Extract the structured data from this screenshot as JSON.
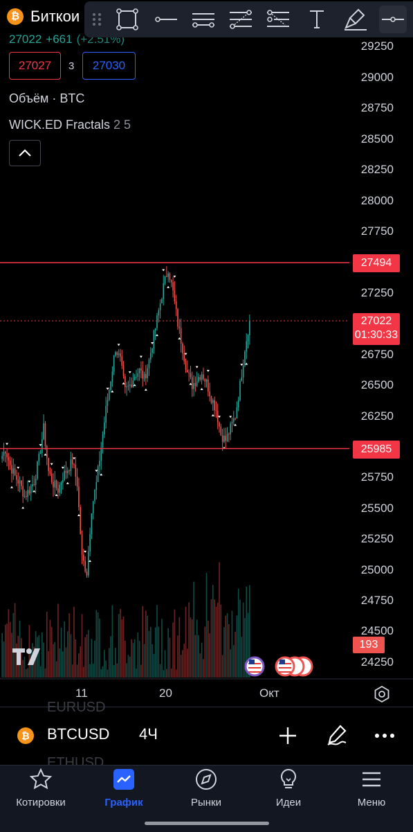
{
  "symbol": {
    "title": "Биткои",
    "price": "27022",
    "change": "+661",
    "change_pct": "(+2.51%)",
    "sell_price": "27027",
    "spread": "3",
    "buy_price": "27030"
  },
  "indicators": [
    {
      "name": "Объём · BTC",
      "params": ""
    },
    {
      "name": "WICK.ED Fractals",
      "params": "2 5"
    }
  ],
  "toolbar": {
    "tools": [
      "drag-handle",
      "rectangle",
      "horizontal-ray",
      "parallel-channel",
      "fib-retracement",
      "pitchfork",
      "text",
      "brush",
      "horizontal-line"
    ],
    "active_tool": "horizontal-line"
  },
  "price_axis": {
    "ticks": [
      "29250",
      "29000",
      "28750",
      "28500",
      "28250",
      "28000",
      "27750",
      "27250",
      "26750",
      "26500",
      "26250",
      "25750",
      "25500",
      "25250",
      "25000",
      "24750",
      "24500",
      "24250"
    ],
    "resistance_label": "27494",
    "current_price_label": "27022",
    "countdown": "01:30:33",
    "support_label": "25985",
    "volume_label": "193"
  },
  "time_axis": {
    "ticks": [
      "11",
      "20",
      "Окт"
    ]
  },
  "chart_data": {
    "type": "candlestick",
    "instrument": "BTCUSD",
    "timeframe": "4Ч",
    "ylim": [
      24200,
      29350
    ],
    "horizontal_lines": [
      27494,
      25985
    ],
    "current_price": 27022,
    "closes_approx": [
      25900,
      25980,
      25850,
      25760,
      25700,
      25600,
      25650,
      25720,
      25900,
      26150,
      25800,
      25700,
      25650,
      25760,
      25820,
      25880,
      25700,
      25100,
      24980,
      25500,
      25700,
      26000,
      26300,
      26550,
      26800,
      26700,
      26450,
      26500,
      26580,
      26620,
      26550,
      26700,
      26900,
      27100,
      27300,
      27450,
      27250,
      27000,
      26800,
      26600,
      26500,
      26550,
      26600,
      26520,
      26400,
      26300,
      26100,
      26050,
      26150,
      26250,
      26500,
      26800,
      27022
    ],
    "volume_label": "193",
    "time_ticks": [
      "11",
      "20",
      "Окт"
    ]
  },
  "bottom_bar": {
    "ghost_symbol_above": "EURUSD",
    "ghost_symbol_below": "ETHUSD",
    "symbol": "BTCUSD",
    "timeframe": "4Ч"
  },
  "nav": [
    {
      "label": "Котировки",
      "icon": "star-icon"
    },
    {
      "label": "График",
      "icon": "chart-icon",
      "active": true
    },
    {
      "label": "Рынки",
      "icon": "compass-icon"
    },
    {
      "label": "Идеи",
      "icon": "lightbulb-icon"
    },
    {
      "label": "Меню",
      "icon": "menu-icon"
    }
  ],
  "colors": {
    "up": "#26a69a",
    "down": "#ef5350",
    "accent": "#2962ff",
    "price_line": "#f23645"
  }
}
